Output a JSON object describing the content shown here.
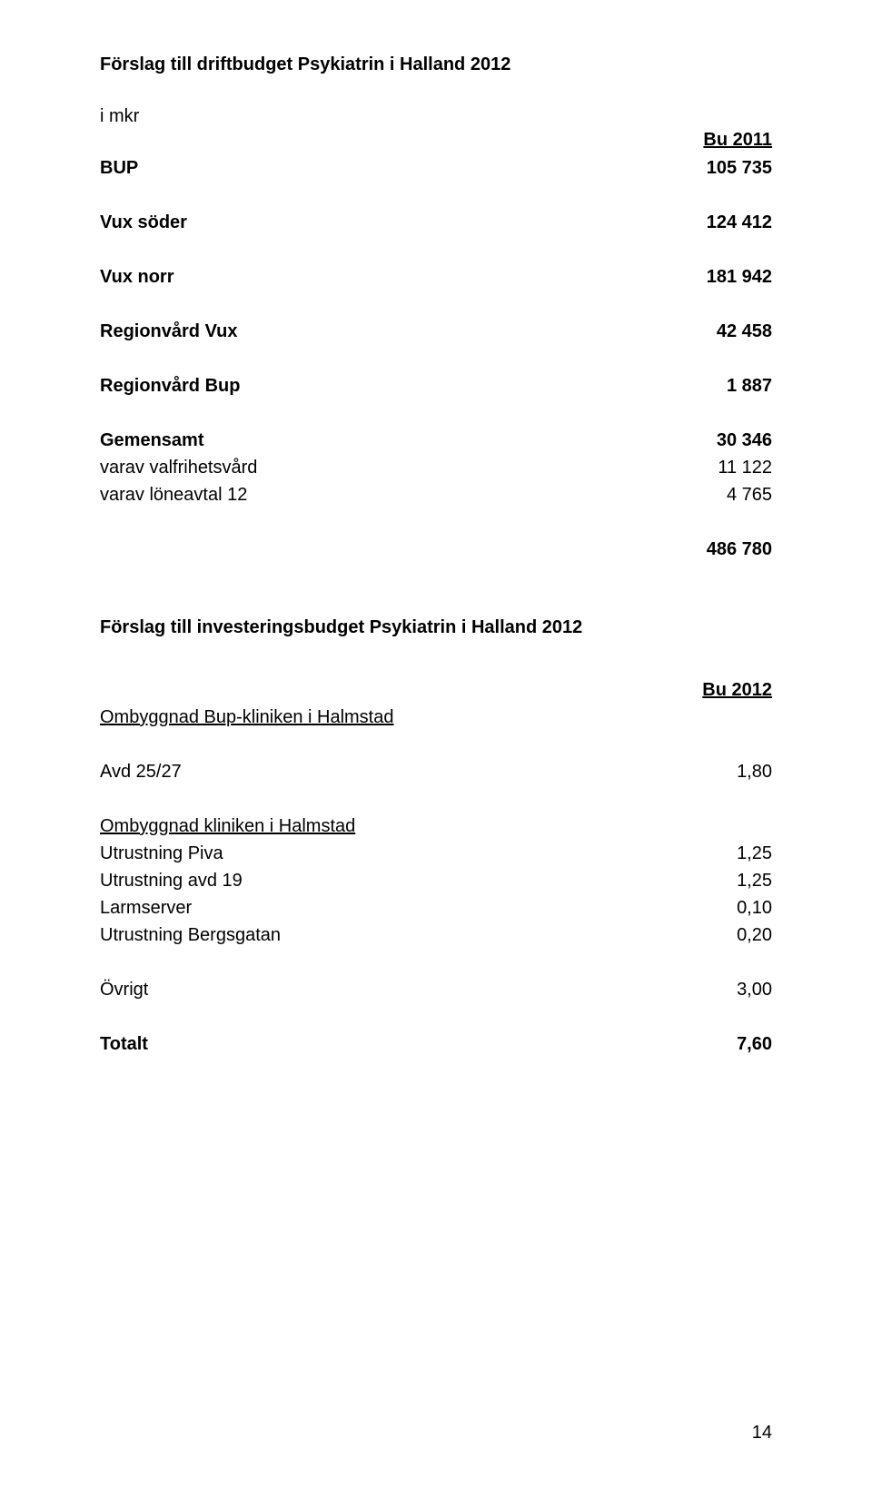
{
  "title1": "Förslag till driftbudget Psykiatrin i Halland 2012",
  "subtitle1": "i mkr",
  "colHeader1": "Bu 2011",
  "drift": [
    {
      "label": "BUP",
      "value": "105 735",
      "bold": true
    },
    {
      "label": "Vux söder",
      "value": "124 412",
      "bold": true
    },
    {
      "label": "Vux norr",
      "value": "181 942",
      "bold": true
    },
    {
      "label": "Regionvård Vux",
      "value": "42 458",
      "bold": true
    },
    {
      "label": "Regionvård Bup",
      "value": "1 887",
      "bold": true
    },
    {
      "label": "Gemensamt",
      "value": "30 346",
      "bold": true
    },
    {
      "label": "varav valfrihetsvård",
      "value": "11 122",
      "bold": false
    },
    {
      "label": "varav löneavtal 12",
      "value": "4 765",
      "bold": false
    }
  ],
  "driftTotal": "486 780",
  "title2": "Förslag till investeringsbudget Psykiatrin i Halland 2012",
  "colHeader2": "Bu 2012",
  "groupA": "Ombyggnad Bup-kliniken i Halmstad",
  "avdLabel": "Avd 25/27",
  "avdValue": "1,80",
  "groupB": "Ombyggnad kliniken i Halmstad",
  "invest": [
    {
      "label": "Utrustning Piva",
      "value": "1,25"
    },
    {
      "label": "Utrustning avd 19",
      "value": "1,25"
    },
    {
      "label": "Larmserver",
      "value": "0,10"
    },
    {
      "label": "Utrustning Bergsgatan",
      "value": "0,20"
    }
  ],
  "ovrigtLabel": "Övrigt",
  "ovrigtValue": "3,00",
  "totaltLabel": "Totalt",
  "totaltValue": "7,60",
  "pageNumber": "14"
}
